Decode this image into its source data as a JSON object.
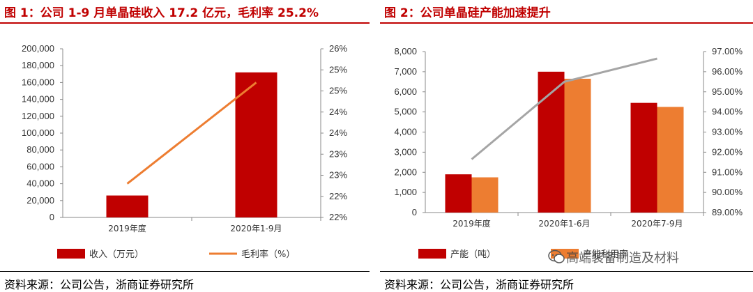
{
  "left": {
    "title": "图 1：公司 1-9 月单晶硅收入 17.2 亿元，毛利率 25.2%",
    "source": "资料来源：公司公告，浙商证券研究所"
  },
  "right": {
    "title": "图 2：公司单晶硅产能加速提升",
    "source": "资料来源：公司公告，浙商证券研究所"
  },
  "watermark": "高端装备制造及材料",
  "chart_data": [
    {
      "type": "bar",
      "categories": [
        "2019年度",
        "2020年1-9月"
      ],
      "series": [
        {
          "name": "收入（万元）",
          "type": "bar",
          "axis": "left",
          "color": "#c00000",
          "values": [
            26000,
            172000
          ]
        },
        {
          "name": "毛利率（%）",
          "type": "line",
          "axis": "right",
          "color": "#ed7d31",
          "values": [
            22.8,
            25.2
          ]
        }
      ],
      "y_left": {
        "min": 0,
        "max": 200000,
        "ticks": [
          0,
          20000,
          40000,
          60000,
          80000,
          100000,
          120000,
          140000,
          160000,
          180000,
          200000
        ],
        "tick_labels": [
          "0",
          "20,000",
          "40,000",
          "60,000",
          "80,000",
          "100,000",
          "120,000",
          "140,000",
          "160,000",
          "180,000",
          "200,000"
        ]
      },
      "y_right": {
        "min": 22,
        "max": 26,
        "tick_labels": [
          "22%",
          "22%",
          "23%",
          "23%",
          "24%",
          "24%",
          "25%",
          "25%",
          "26%"
        ]
      },
      "legend_placement": "bottom"
    },
    {
      "type": "bar",
      "categories": [
        "2019年度",
        "2020年1-6月",
        "2020年7-9月"
      ],
      "series": [
        {
          "name": "产能（吨）",
          "type": "bar",
          "axis": "left",
          "color": "#c00000",
          "values": [
            1900,
            7000,
            5450
          ]
        },
        {
          "name": "产能利用率",
          "type": "bar",
          "axis": "left",
          "color": "#ed7d31",
          "values": [
            1750,
            6650,
            5250
          ]
        },
        {
          "name": "",
          "type": "line",
          "axis": "right",
          "color": "#a5a5a5",
          "values": [
            91.65,
            95.5,
            96.65
          ]
        }
      ],
      "y_left": {
        "min": 0,
        "max": 8000,
        "tick_labels": [
          "0",
          "1,000",
          "2,000",
          "3,000",
          "4,000",
          "5,000",
          "6,000",
          "7,000",
          "8,000"
        ]
      },
      "y_right": {
        "min": 89,
        "max": 97,
        "tick_labels": [
          "89.00%",
          "90.00%",
          "91.00%",
          "92.00%",
          "93.00%",
          "94.00%",
          "95.00%",
          "96.00%",
          "97.00%"
        ]
      },
      "legend_placement": "bottom"
    }
  ]
}
